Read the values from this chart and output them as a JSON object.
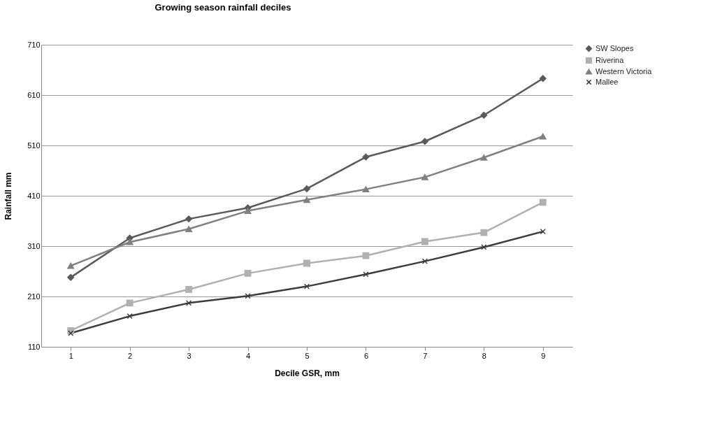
{
  "chart_data": {
    "type": "line",
    "title": "Growing season rainfall deciles",
    "xlabel": "Decile GSR, mm",
    "ylabel": "Rainfall mm",
    "categories": [
      "1",
      "2",
      "3",
      "4",
      "5",
      "6",
      "7",
      "8",
      "9"
    ],
    "series": [
      {
        "name": "SW Slopes",
        "color": "#5a5a5a",
        "marker": "diamond",
        "values": [
          248,
          326,
          364,
          386,
          424,
          487,
          518,
          570,
          643
        ]
      },
      {
        "name": "Riverina",
        "color": "#b0b0b0",
        "marker": "square",
        "values": [
          142,
          197,
          224,
          256,
          276,
          291,
          319,
          337,
          397
        ]
      },
      {
        "name": "Western Victoria",
        "color": "#808080",
        "marker": "triangle",
        "values": [
          271,
          318,
          344,
          380,
          402,
          423,
          447,
          486,
          528
        ]
      },
      {
        "name": "Mallee",
        "color": "#3c3c3c",
        "marker": "cross",
        "values": [
          137,
          171,
          197,
          211,
          230,
          254,
          280,
          308,
          339
        ]
      }
    ],
    "ylim": [
      110,
      710
    ],
    "yticks": [
      110,
      210,
      310,
      410,
      510,
      610,
      710
    ],
    "grid": "y",
    "legend": "right",
    "line_style": "solid"
  }
}
